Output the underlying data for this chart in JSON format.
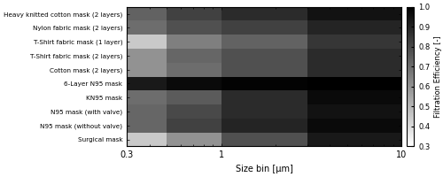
{
  "masks": [
    "Heavy knitted cotton mask (2 layers)",
    "Nylon fabric mask (2 layers)",
    "T-Shirt fabric mask (1 layer)",
    "T-Shirt fabric mask (2 layers)",
    "Cotton mask (2 layers)",
    "6-Layer N95 mask",
    "KN95 mask",
    "N95 mask (with valve)",
    "N95 mask (without valve)",
    "Surgical mask"
  ],
  "size_bin_edges": [
    0.3,
    0.5,
    1.0,
    3.0,
    10.0
  ],
  "size_bin_ticks": [
    0.3,
    1.0,
    10.0
  ],
  "size_bin_labels": [
    "0.3",
    "1",
    "10"
  ],
  "data": [
    [
      0.73,
      0.82,
      0.88,
      0.95
    ],
    [
      0.7,
      0.78,
      0.82,
      0.9
    ],
    [
      0.45,
      0.65,
      0.73,
      0.85
    ],
    [
      0.6,
      0.72,
      0.78,
      0.88
    ],
    [
      0.6,
      0.7,
      0.78,
      0.88
    ],
    [
      0.93,
      0.97,
      0.99,
      1.0
    ],
    [
      0.7,
      0.75,
      0.88,
      0.97
    ],
    [
      0.72,
      0.8,
      0.88,
      0.95
    ],
    [
      0.72,
      0.82,
      0.9,
      0.97
    ],
    [
      0.45,
      0.6,
      0.78,
      0.93
    ]
  ],
  "vmin": 0.3,
  "vmax": 1.0,
  "cmap": "gray_r",
  "xlabel": "Size bin [μm]",
  "ylabel": "Filtration Efficiency [-]",
  "colorbar_ticks": [
    0.3,
    0.4,
    0.5,
    0.6,
    0.7,
    0.8,
    0.9,
    1.0
  ],
  "figsize": [
    5.0,
    2.0
  ],
  "dpi": 100
}
